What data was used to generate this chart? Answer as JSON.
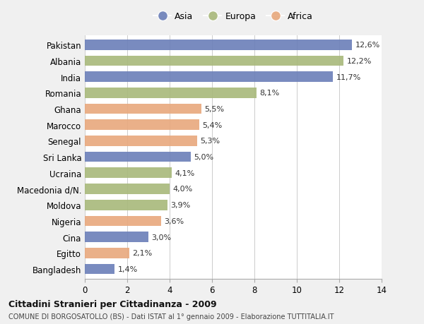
{
  "countries": [
    "Pakistan",
    "Albania",
    "India",
    "Romania",
    "Ghana",
    "Marocco",
    "Senegal",
    "Sri Lanka",
    "Ucraina",
    "Macedonia d/N.",
    "Moldova",
    "Nigeria",
    "Cina",
    "Egitto",
    "Bangladesh"
  ],
  "values": [
    12.6,
    12.2,
    11.7,
    8.1,
    5.5,
    5.4,
    5.3,
    5.0,
    4.1,
    4.0,
    3.9,
    3.6,
    3.0,
    2.1,
    1.4
  ],
  "continents": [
    "Asia",
    "Europa",
    "Asia",
    "Europa",
    "Africa",
    "Africa",
    "Africa",
    "Asia",
    "Europa",
    "Europa",
    "Europa",
    "Africa",
    "Asia",
    "Africa",
    "Asia"
  ],
  "colors": {
    "Asia": "#6b7fb8",
    "Europa": "#a8b87a",
    "Africa": "#e8a87c"
  },
  "labels": [
    "12,6%",
    "12,2%",
    "11,7%",
    "8,1%",
    "5,5%",
    "5,4%",
    "5,3%",
    "5,0%",
    "4,1%",
    "4,0%",
    "3,9%",
    "3,6%",
    "3,0%",
    "2,1%",
    "1,4%"
  ],
  "xlim": [
    0,
    14
  ],
  "xticks": [
    0,
    2,
    4,
    6,
    8,
    10,
    12,
    14
  ],
  "title": "Cittadini Stranieri per Cittadinanza - 2009",
  "subtitle": "COMUNE DI BORGOSATOLLO (BS) - Dati ISTAT al 1° gennaio 2009 - Elaborazione TUTTITALIA.IT",
  "legend_labels": [
    "Asia",
    "Europa",
    "Africa"
  ],
  "background_color": "#f0f0f0",
  "bar_background": "#ffffff"
}
